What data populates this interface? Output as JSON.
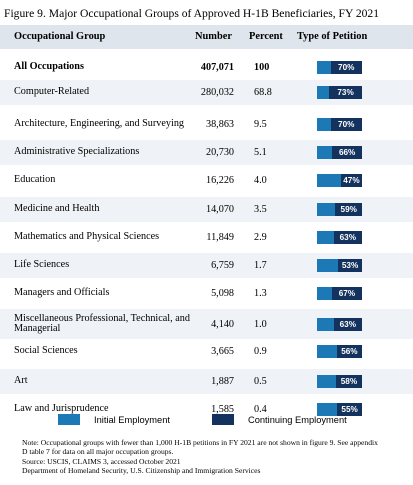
{
  "title": "Figure 9. Major Occupational Groups of Approved H-1B Beneficiaries, FY 2021",
  "headers": {
    "group": "Occupational Group",
    "number": "Number",
    "percent": "Percent",
    "type": "Type of Petition"
  },
  "colors": {
    "initial": "#1d79b6",
    "continuing": "#14325e",
    "header_bg": "#dfe5ec",
    "stripe_bg": "#eff2f6"
  },
  "legend": {
    "initial": "Initial Employment",
    "continuing": "Continuing Employment"
  },
  "notes": [
    "Note: Occupational groups with fewer than 1,000 H-1B petitions in FY 2021 are not shown in figure 9.  See appendix",
    "D table 7 for data on all major occupation groups.",
    "Source: USCIS, CLAIMS 3, accessed October 2021",
    "Department of Homeland Security, U.S. Citizenship and Immigration Services"
  ],
  "chart_data": {
    "type": "table",
    "title": "Figure 9. Major Occupational Groups of Approved H-1B Beneficiaries, FY 2021",
    "columns": [
      "Occupational Group",
      "Number",
      "Percent",
      "Type of Petition"
    ],
    "rows": [
      {
        "group": "All Occupations",
        "number": "407,071",
        "percent": "100",
        "continuing_pct": 70,
        "label": "70%",
        "bold": true
      },
      {
        "group": "Computer-Related",
        "number": "280,032",
        "percent": "68.8",
        "continuing_pct": 73,
        "label": "73%"
      },
      {
        "group": "Architecture, Engineering, and Surveying",
        "number": "38,863",
        "percent": "9.5",
        "continuing_pct": 70,
        "label": "70%"
      },
      {
        "group": "Administrative Specializations",
        "number": "20,730",
        "percent": "5.1",
        "continuing_pct": 66,
        "label": "66%"
      },
      {
        "group": "Education",
        "number": "16,226",
        "percent": "4.0",
        "continuing_pct": 47,
        "label": "47%"
      },
      {
        "group": "Medicine and Health",
        "number": "14,070",
        "percent": "3.5",
        "continuing_pct": 59,
        "label": "59%"
      },
      {
        "group": "Mathematics and Physical Sciences",
        "number": "11,849",
        "percent": "2.9",
        "continuing_pct": 63,
        "label": "63%"
      },
      {
        "group": "Life Sciences",
        "number": "6,759",
        "percent": "1.7",
        "continuing_pct": 53,
        "label": "53%"
      },
      {
        "group": "Managers and Officials",
        "number": "5,098",
        "percent": "1.3",
        "continuing_pct": 67,
        "label": "67%"
      },
      {
        "group": "Miscellaneous Professional, Technical, and Managerial",
        "number": "4,140",
        "percent": "1.0",
        "continuing_pct": 63,
        "label": "63%"
      },
      {
        "group": "Social Sciences",
        "number": "3,665",
        "percent": "0.9",
        "continuing_pct": 56,
        "label": "56%"
      },
      {
        "group": "Art",
        "number": "1,887",
        "percent": "0.5",
        "continuing_pct": 58,
        "label": "58%"
      },
      {
        "group": "Law and Jurisprudence",
        "number": "1,585",
        "percent": "0.4",
        "continuing_pct": 55,
        "label": "55%"
      }
    ]
  }
}
